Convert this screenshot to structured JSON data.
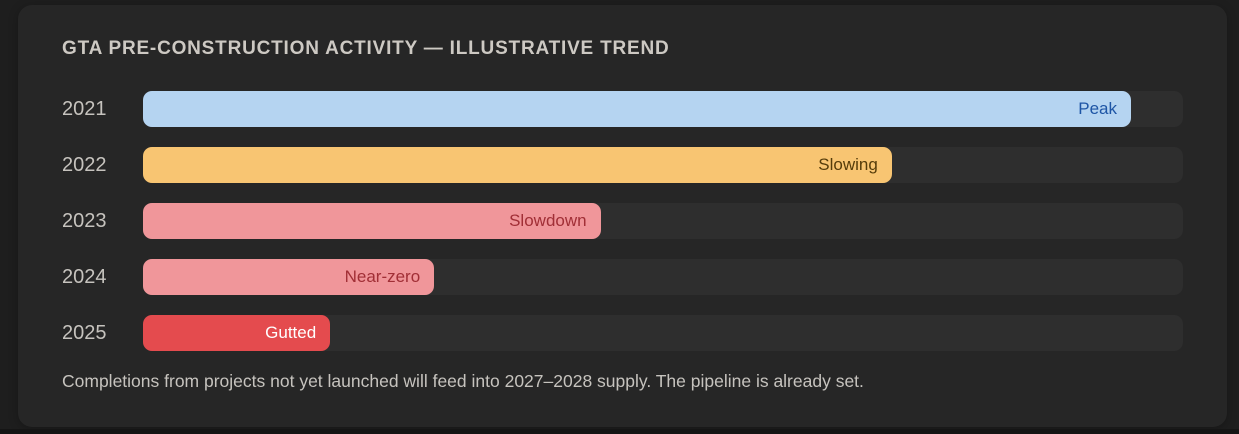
{
  "colors": {
    "page-bg": "#1e1e1e",
    "card-bg": "#262626",
    "track": "#2e2e2e",
    "title-text": "#cdc9c3",
    "muted-text": "#c6c3be",
    "footer-strip": "#151515"
  },
  "chart_data": {
    "type": "bar",
    "orientation": "horizontal",
    "title": "GTA PRE-CONSTRUCTION ACTIVITY — ILLUSTRATIVE TREND",
    "categories": [
      "2021",
      "2022",
      "2023",
      "2024",
      "2025"
    ],
    "values": [
      95,
      72,
      44,
      28,
      18
    ],
    "value_unit": "percent_of_track_width",
    "xlim": [
      0,
      100
    ],
    "grid": false,
    "legend": false,
    "bar_labels": [
      "Peak",
      "Slowing",
      "Slowdown",
      "Near-zero",
      "Gutted"
    ],
    "bar_colors": [
      "#b5d4f1",
      "#f8c572",
      "#f0969a",
      "#f0969a",
      "#e44b4e"
    ],
    "bar_label_colors": [
      "#1e55a5",
      "#553c0a",
      "#a12f36",
      "#a12f36",
      "#ffffff"
    ],
    "track_color": "#2e2e2e",
    "caption": "Completions from projects not yet launched will feed into 2027–2028 supply. The pipeline is already set."
  }
}
